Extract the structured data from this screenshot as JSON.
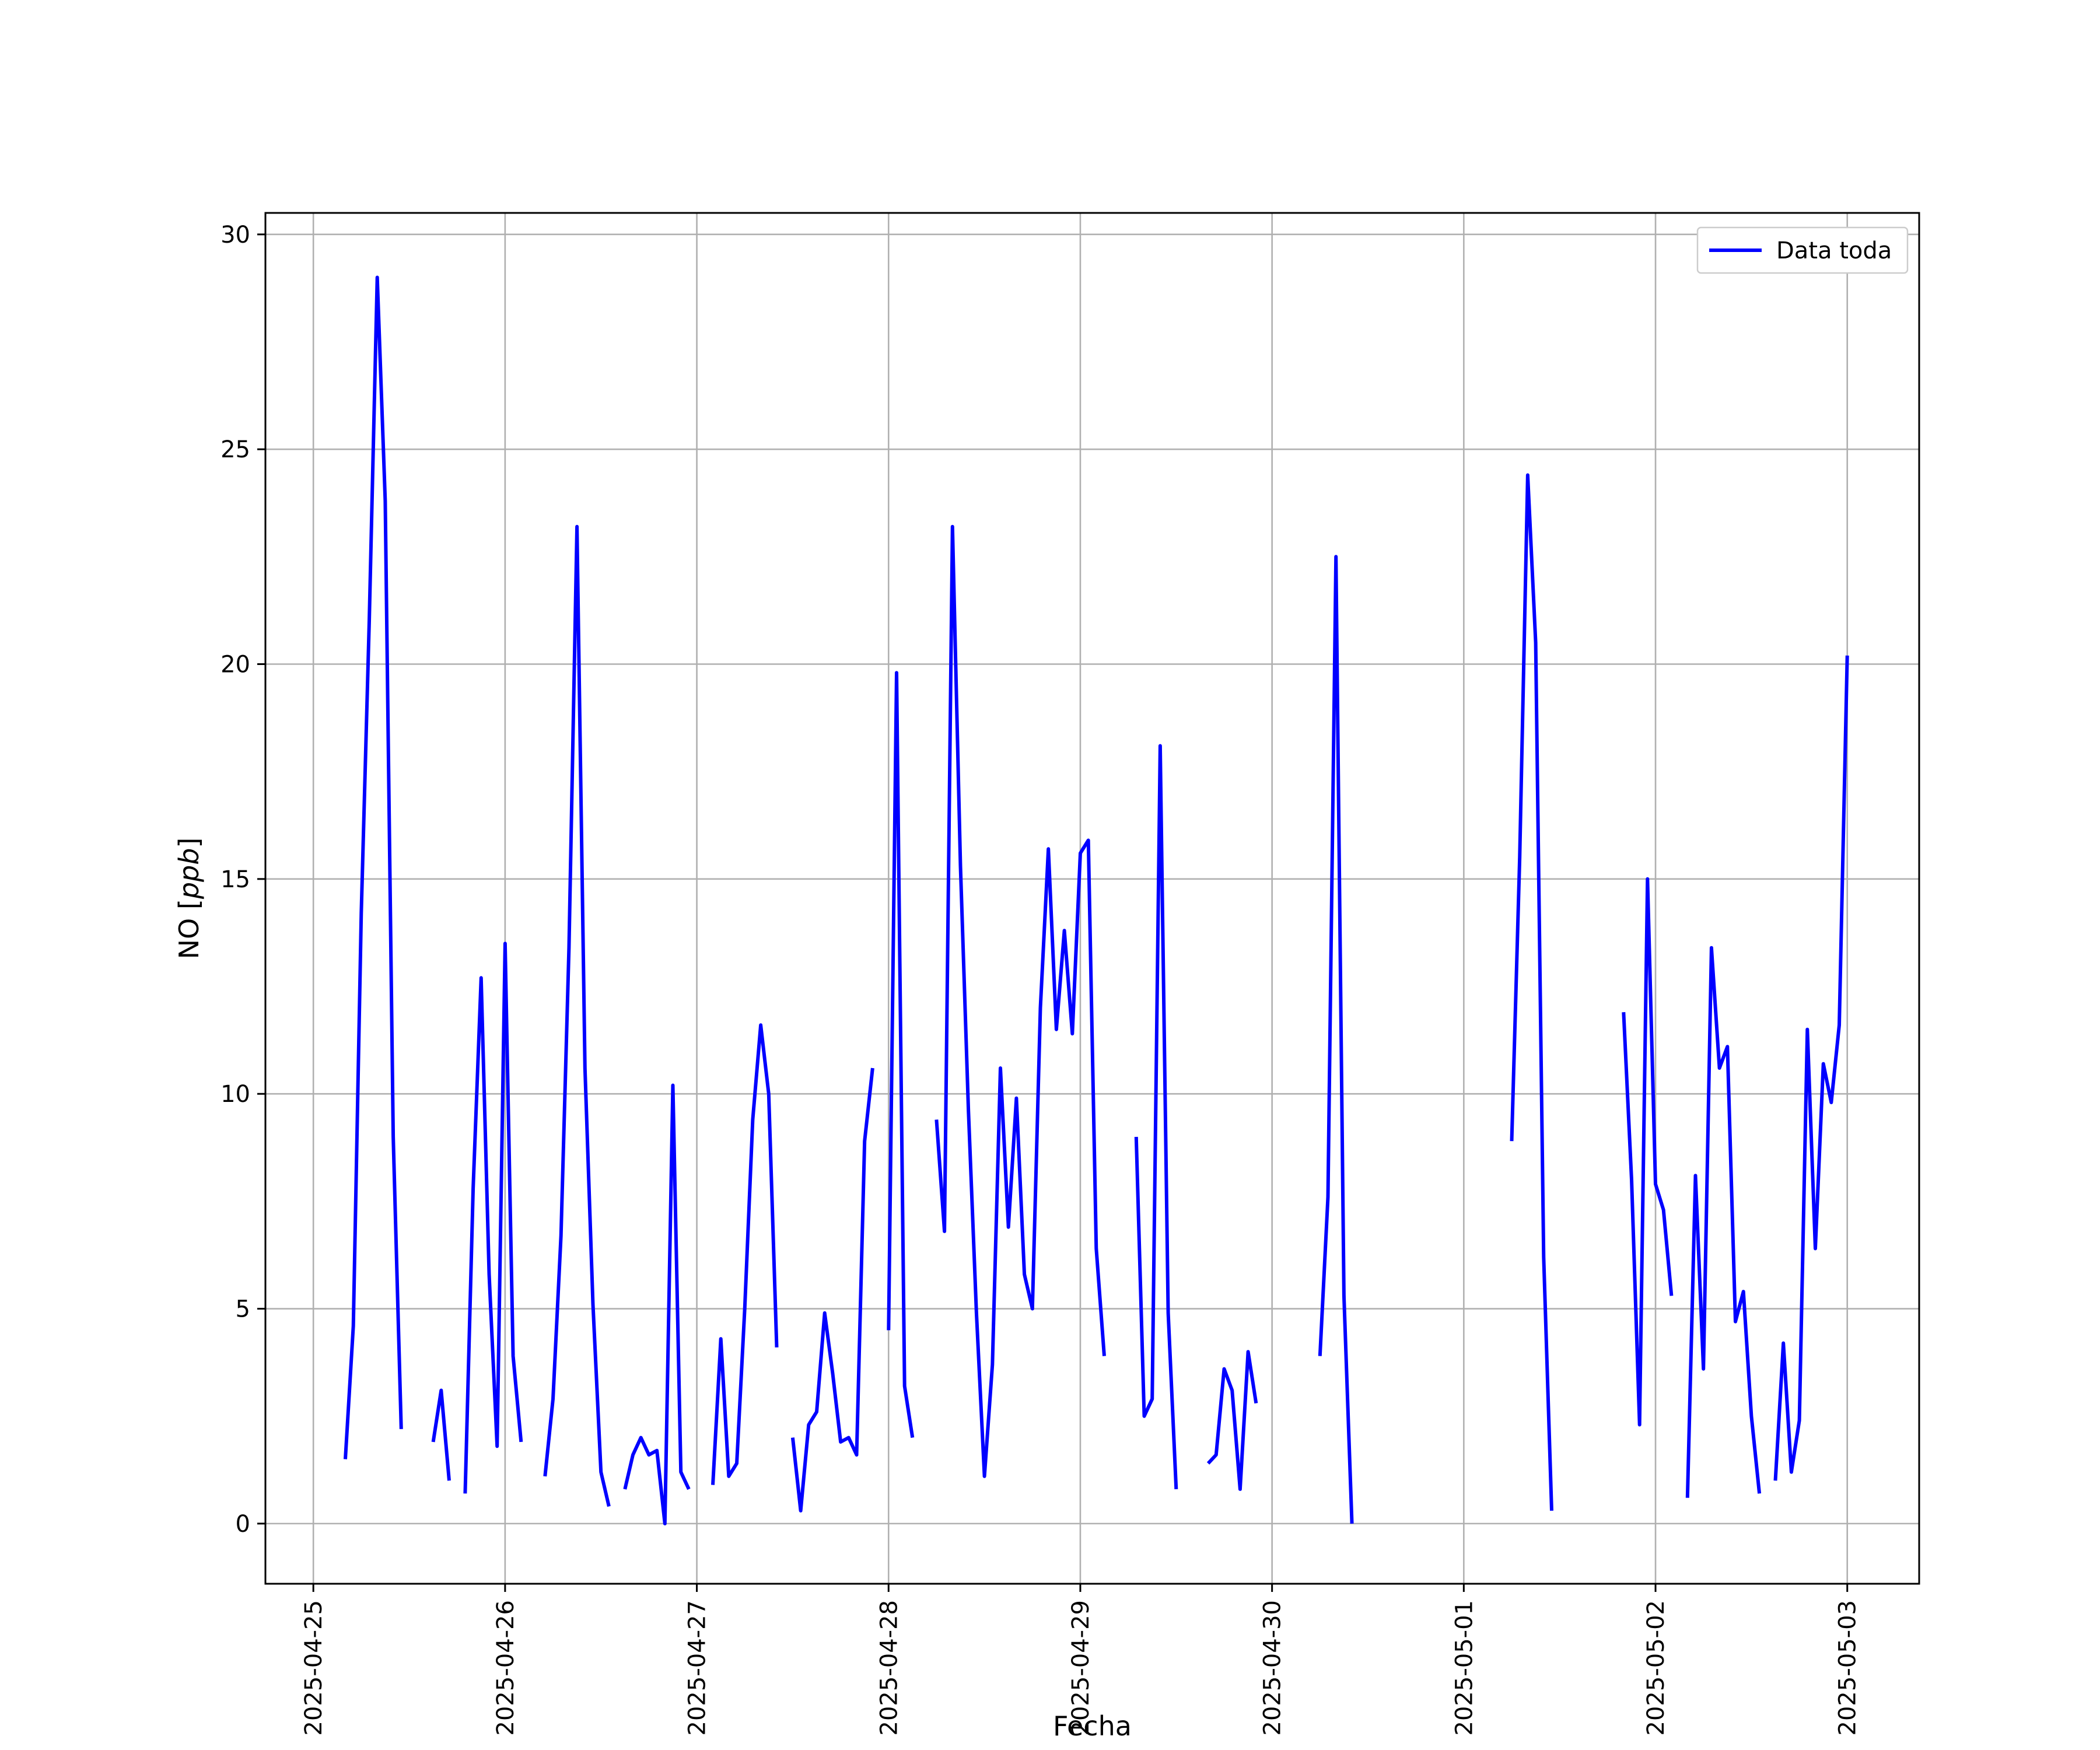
{
  "chart_data": {
    "type": "line",
    "title": "",
    "xlabel": "Fecha",
    "ylabel_text": "NO",
    "ylabel_unit": "ppb",
    "x_tick_labels": [
      "2025-04-25",
      "2025-04-26",
      "2025-04-27",
      "2025-04-28",
      "2025-04-29",
      "2025-04-30",
      "2025-05-01",
      "2025-05-02",
      "2025-05-03"
    ],
    "y_ticks": [
      0,
      5,
      10,
      15,
      20,
      25,
      30
    ],
    "xlim": [
      "2025-04-24 18:00",
      "2025-05-03 09:00"
    ],
    "ylim": [
      -1.4,
      30.5
    ],
    "grid": true,
    "legend_position": "top-right",
    "series": [
      {
        "name": "Data toda",
        "color": "#0000ff",
        "segments": [
          [
            [
              "2025-04-25 04:00",
              1.5
            ],
            [
              "2025-04-25 05:00",
              4.6
            ],
            [
              "2025-04-25 06:00",
              14.2
            ],
            [
              "2025-04-25 07:00",
              21.0
            ],
            [
              "2025-04-25 08:00",
              29.0
            ],
            [
              "2025-04-25 09:00",
              23.8
            ],
            [
              "2025-04-25 10:00",
              9.0
            ],
            [
              "2025-04-25 11:00",
              2.2
            ]
          ],
          [
            [
              "2025-04-25 15:00",
              1.9
            ],
            [
              "2025-04-25 16:00",
              3.1
            ],
            [
              "2025-04-25 17:00",
              1.0
            ]
          ],
          [
            [
              "2025-04-25 19:00",
              0.7
            ],
            [
              "2025-04-25 20:00",
              7.8
            ],
            [
              "2025-04-25 21:00",
              12.7
            ],
            [
              "2025-04-25 22:00",
              5.8
            ],
            [
              "2025-04-25 23:00",
              1.8
            ],
            [
              "2025-04-26 00:00",
              13.5
            ],
            [
              "2025-04-26 01:00",
              3.9
            ],
            [
              "2025-04-26 02:00",
              1.9
            ]
          ],
          [
            [
              "2025-04-26 05:00",
              1.1
            ],
            [
              "2025-04-26 06:00",
              2.9
            ],
            [
              "2025-04-26 07:00",
              6.7
            ],
            [
              "2025-04-26 08:00",
              13.4
            ],
            [
              "2025-04-26 09:00",
              23.2
            ],
            [
              "2025-04-26 10:00",
              10.6
            ],
            [
              "2025-04-26 11:00",
              5.1
            ],
            [
              "2025-04-26 12:00",
              1.2
            ],
            [
              "2025-04-26 13:00",
              0.4
            ]
          ],
          [
            [
              "2025-04-26 15:00",
              0.8
            ],
            [
              "2025-04-26 16:00",
              1.6
            ],
            [
              "2025-04-26 17:00",
              2.0
            ],
            [
              "2025-04-26 18:00",
              1.6
            ],
            [
              "2025-04-26 19:00",
              1.7
            ],
            [
              "2025-04-26 20:00",
              0.0
            ],
            [
              "2025-04-26 21:00",
              10.2
            ],
            [
              "2025-04-26 22:00",
              1.2
            ],
            [
              "2025-04-26 23:00",
              0.8
            ]
          ],
          [
            [
              "2025-04-27 02:00",
              0.9
            ],
            [
              "2025-04-27 03:00",
              4.3
            ],
            [
              "2025-04-27 04:00",
              1.1
            ],
            [
              "2025-04-27 05:00",
              1.4
            ],
            [
              "2025-04-27 06:00",
              5.0
            ],
            [
              "2025-04-27 07:00",
              9.4
            ],
            [
              "2025-04-27 08:00",
              11.6
            ],
            [
              "2025-04-27 09:00",
              10.0
            ],
            [
              "2025-04-27 10:00",
              4.1
            ]
          ],
          [
            [
              "2025-04-27 12:00",
              2.0
            ],
            [
              "2025-04-27 13:00",
              0.3
            ],
            [
              "2025-04-27 14:00",
              2.3
            ],
            [
              "2025-04-27 15:00",
              2.6
            ],
            [
              "2025-04-27 16:00",
              4.9
            ],
            [
              "2025-04-27 17:00",
              3.5
            ],
            [
              "2025-04-27 18:00",
              1.9
            ],
            [
              "2025-04-27 19:00",
              2.0
            ],
            [
              "2025-04-27 20:00",
              1.6
            ],
            [
              "2025-04-27 21:00",
              8.9
            ],
            [
              "2025-04-27 22:00",
              10.6
            ]
          ],
          [
            [
              "2025-04-28 00:00",
              4.5
            ],
            [
              "2025-04-28 01:00",
              19.8
            ],
            [
              "2025-04-28 02:00",
              3.2
            ],
            [
              "2025-04-28 03:00",
              2.0
            ]
          ],
          [
            [
              "2025-04-28 06:00",
              9.4
            ],
            [
              "2025-04-28 07:00",
              6.8
            ],
            [
              "2025-04-28 08:00",
              23.2
            ],
            [
              "2025-04-28 09:00",
              15.3
            ],
            [
              "2025-04-28 10:00",
              9.6
            ],
            [
              "2025-04-28 11:00",
              4.9
            ],
            [
              "2025-04-28 12:00",
              1.1
            ],
            [
              "2025-04-28 13:00",
              3.7
            ],
            [
              "2025-04-28 14:00",
              10.6
            ],
            [
              "2025-04-28 15:00",
              6.9
            ],
            [
              "2025-04-28 16:00",
              9.9
            ],
            [
              "2025-04-28 17:00",
              5.8
            ],
            [
              "2025-04-28 18:00",
              5.0
            ],
            [
              "2025-04-28 19:00",
              12.0
            ],
            [
              "2025-04-28 20:00",
              15.7
            ],
            [
              "2025-04-28 21:00",
              11.5
            ],
            [
              "2025-04-28 22:00",
              13.8
            ],
            [
              "2025-04-28 23:00",
              11.4
            ],
            [
              "2025-04-29 00:00",
              15.6
            ],
            [
              "2025-04-29 01:00",
              15.9
            ],
            [
              "2025-04-29 02:00",
              6.4
            ],
            [
              "2025-04-29 03:00",
              3.9
            ]
          ],
          [
            [
              "2025-04-29 07:00",
              9.0
            ],
            [
              "2025-04-29 08:00",
              2.5
            ],
            [
              "2025-04-29 09:00",
              2.9
            ],
            [
              "2025-04-29 10:00",
              18.1
            ],
            [
              "2025-04-29 11:00",
              4.9
            ],
            [
              "2025-04-29 12:00",
              0.8
            ]
          ],
          [
            [
              "2025-04-29 16:00",
              1.4
            ],
            [
              "2025-04-29 17:00",
              1.6
            ],
            [
              "2025-04-29 18:00",
              3.6
            ],
            [
              "2025-04-29 19:00",
              3.1
            ],
            [
              "2025-04-29 20:00",
              0.8
            ],
            [
              "2025-04-29 21:00",
              4.0
            ],
            [
              "2025-04-29 22:00",
              2.8
            ]
          ],
          [
            [
              "2025-04-30 06:00",
              3.9
            ],
            [
              "2025-04-30 07:00",
              7.6
            ],
            [
              "2025-04-30 08:00",
              22.5
            ],
            [
              "2025-04-30 09:00",
              5.3
            ],
            [
              "2025-04-30 10:00",
              0.0
            ]
          ],
          [
            [
              "2025-05-01 06:00",
              8.9
            ],
            [
              "2025-05-01 07:00",
              15.5
            ],
            [
              "2025-05-01 08:00",
              24.4
            ],
            [
              "2025-05-01 09:00",
              20.5
            ],
            [
              "2025-05-01 10:00",
              6.2
            ],
            [
              "2025-05-01 11:00",
              0.3
            ]
          ],
          [
            [
              "2025-05-01 20:00",
              11.9
            ],
            [
              "2025-05-01 21:00",
              8.0
            ],
            [
              "2025-05-01 22:00",
              2.3
            ],
            [
              "2025-05-01 23:00",
              15.0
            ],
            [
              "2025-05-02 00:00",
              7.9
            ],
            [
              "2025-05-02 01:00",
              7.3
            ],
            [
              "2025-05-02 02:00",
              5.3
            ]
          ],
          [
            [
              "2025-05-02 04:00",
              0.6
            ],
            [
              "2025-05-02 05:00",
              8.1
            ],
            [
              "2025-05-02 06:00",
              3.6
            ],
            [
              "2025-05-02 07:00",
              13.4
            ],
            [
              "2025-05-02 08:00",
              10.6
            ],
            [
              "2025-05-02 09:00",
              11.1
            ],
            [
              "2025-05-02 10:00",
              4.7
            ],
            [
              "2025-05-02 11:00",
              5.4
            ],
            [
              "2025-05-02 12:00",
              2.5
            ],
            [
              "2025-05-02 13:00",
              0.7
            ]
          ],
          [
            [
              "2025-05-02 15:00",
              1.0
            ],
            [
              "2025-05-02 16:00",
              4.2
            ],
            [
              "2025-05-02 17:00",
              1.2
            ],
            [
              "2025-05-02 18:00",
              2.4
            ],
            [
              "2025-05-02 19:00",
              11.5
            ],
            [
              "2025-05-02 20:00",
              6.4
            ],
            [
              "2025-05-02 21:00",
              10.7
            ],
            [
              "2025-05-02 22:00",
              9.8
            ],
            [
              "2025-05-02 23:00",
              11.6
            ],
            [
              "2025-05-03 00:00",
              20.2
            ]
          ]
        ]
      }
    ]
  }
}
